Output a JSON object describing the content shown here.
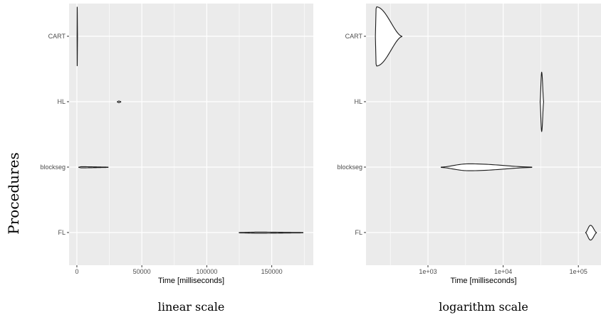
{
  "figure": {
    "y_title": "Procedures"
  },
  "chart_data": [
    {
      "type": "violin",
      "caption": "linear scale",
      "xlabel": "Time [milliseconds]",
      "ylabel": "",
      "x_scale": "linear",
      "xlim": [
        -6000,
        182000
      ],
      "x_ticks": [
        0,
        50000,
        100000,
        150000
      ],
      "x_tick_labels": [
        "0",
        "50000",
        "100000",
        "150000"
      ],
      "categories": [
        "CART",
        "HL",
        "blockseg",
        "FL"
      ],
      "grid": true,
      "violins": [
        {
          "category": "CART",
          "min": 150,
          "max": 500,
          "mode": 250,
          "max_halfwidth": 0.45
        },
        {
          "category": "HL",
          "min": 31200,
          "max": 33800,
          "mode": 32300,
          "max_halfwidth": 0.01
        },
        {
          "category": "blockseg",
          "min": 1500,
          "max": 24000,
          "mode": 3500,
          "max_halfwidth": 0.006
        },
        {
          "category": "FL",
          "min": 125000,
          "max": 174000,
          "mode": 140000,
          "max_halfwidth": 0.006
        }
      ]
    },
    {
      "type": "violin",
      "caption": "logarithm scale",
      "xlabel": "Time [milliseconds]",
      "ylabel": "",
      "x_scale": "log10",
      "xlim": [
        150,
        200000
      ],
      "x_ticks": [
        1000,
        10000,
        100000
      ],
      "x_tick_labels": [
        "1e+03",
        "1e+04",
        "1e+05"
      ],
      "categories": [
        "CART",
        "HL",
        "blockseg",
        "FL"
      ],
      "grid": true,
      "violins": [
        {
          "category": "CART",
          "min": 200,
          "max": 450,
          "mode": 205,
          "max_halfwidth": 0.45
        },
        {
          "category": "HL",
          "min": 31000,
          "max": 34500,
          "mode": 32500,
          "max_halfwidth": 0.45
        },
        {
          "category": "blockseg",
          "min": 1500,
          "max": 24000,
          "mode": 3500,
          "max_halfwidth": 0.05
        },
        {
          "category": "FL",
          "min": 125000,
          "max": 174000,
          "mode": 145000,
          "max_halfwidth": 0.11
        }
      ]
    }
  ]
}
